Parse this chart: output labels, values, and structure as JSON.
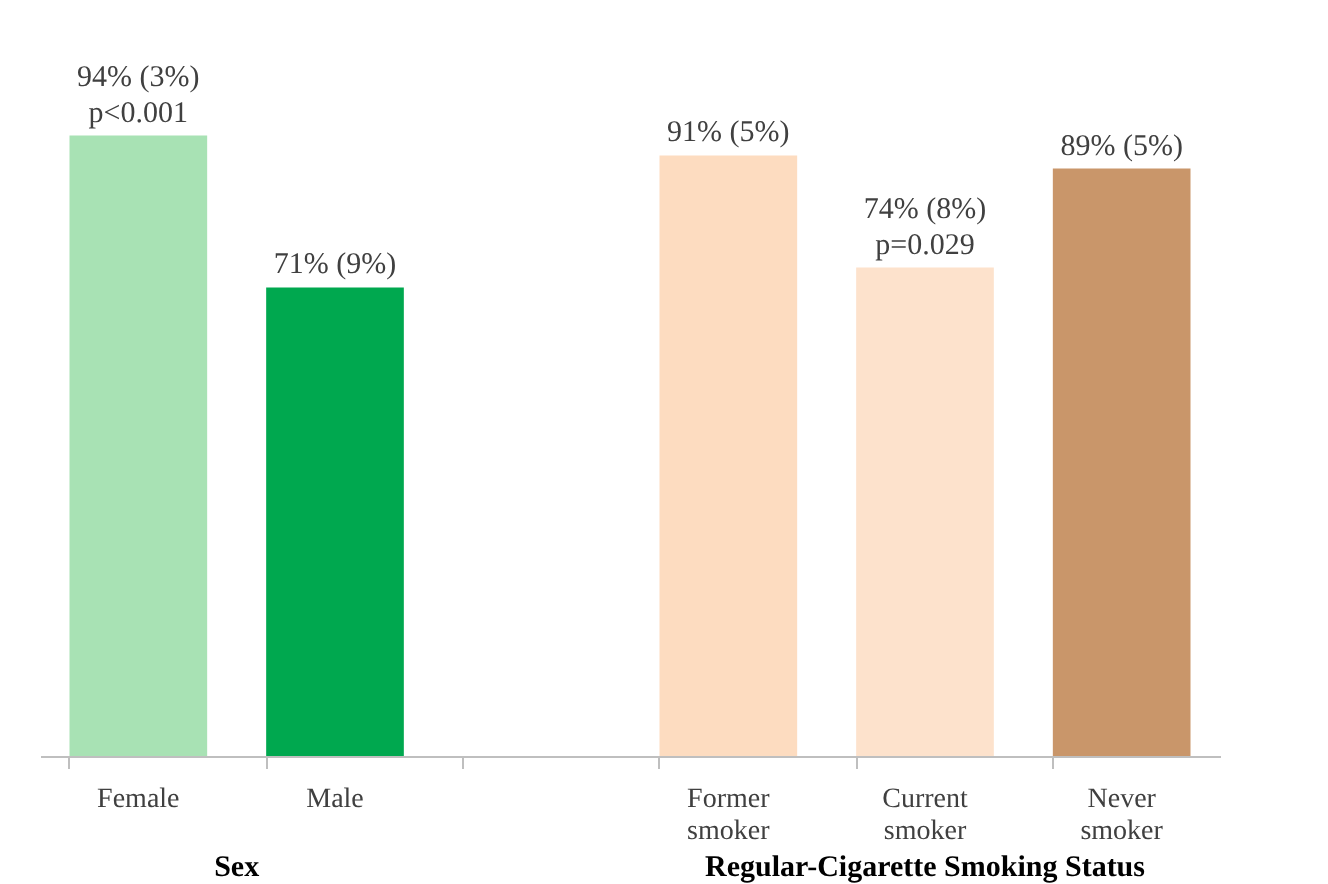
{
  "chart_data": {
    "type": "bar",
    "categories": [
      "Female",
      "Male",
      null,
      "Former smoker",
      "Current smoker",
      "Never smoker"
    ],
    "values": [
      94,
      71,
      null,
      91,
      74,
      89
    ],
    "colors": [
      "#a8e2b4",
      "#00a84f",
      null,
      "#fddcc0",
      "#fde2cc",
      "#c9966a"
    ],
    "value_labels": [
      "94% (3%)\np<0.001",
      "71% (9%)",
      null,
      "91% (5%)",
      "74% (8%)\np=0.029",
      "89% (5%)"
    ],
    "annotations": [
      "Sex",
      "Regular-Cigarette Smoking Status"
    ],
    "grid": false
  }
}
